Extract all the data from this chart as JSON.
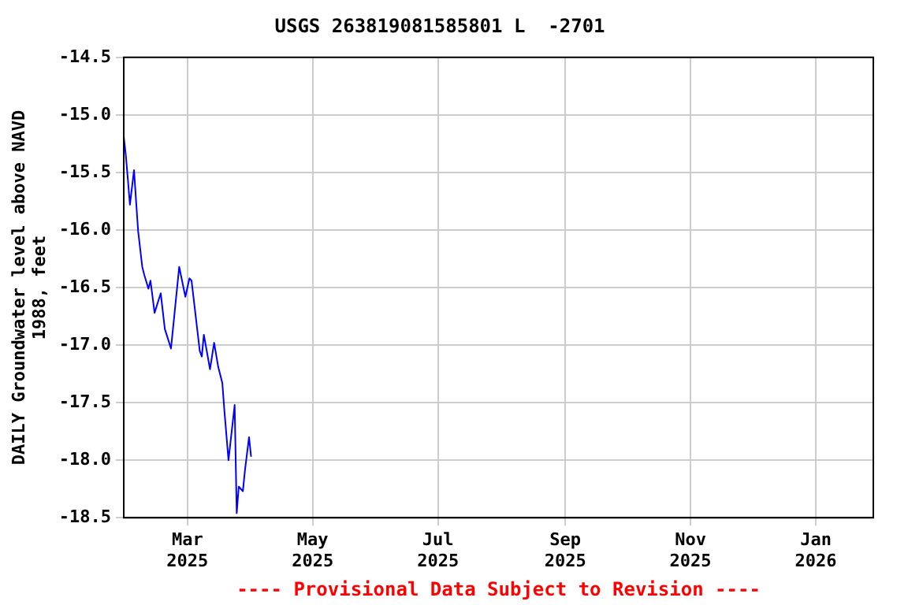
{
  "chart_data": {
    "type": "line",
    "title": "USGS 263819081585801 L  -2701",
    "ylabel": "DAILY Groundwater level above NAVD 1988, feet",
    "annotations": [
      "---- Provisional Data Subject to Revision ----"
    ],
    "x": [
      "2025-01-29",
      "2025-01-30",
      "2025-01-31",
      "2025-02-01",
      "2025-02-03",
      "2025-02-04",
      "2025-02-05",
      "2025-02-07",
      "2025-02-08",
      "2025-02-10",
      "2025-02-11",
      "2025-02-13",
      "2025-02-16",
      "2025-02-18",
      "2025-02-21",
      "2025-02-25",
      "2025-02-28",
      "2025-03-02",
      "2025-03-03",
      "2025-03-07",
      "2025-03-08",
      "2025-03-09",
      "2025-03-12",
      "2025-03-14",
      "2025-03-16",
      "2025-03-18",
      "2025-03-19",
      "2025-03-21",
      "2025-03-24",
      "2025-03-25",
      "2025-03-26",
      "2025-03-28",
      "2025-03-29",
      "2025-03-31",
      "2025-04-01"
    ],
    "series": [
      {
        "color": "#0000ff",
        "values": [
          -15.19,
          -15.35,
          -15.56,
          -15.78,
          -15.48,
          -15.75,
          -16.01,
          -16.32,
          -16.39,
          -16.51,
          -16.44,
          -16.72,
          -16.55,
          -16.86,
          -17.03,
          -16.32,
          -16.58,
          -16.42,
          -16.44,
          -17.05,
          -17.1,
          -16.91,
          -17.21,
          -16.98,
          -17.19,
          -17.33,
          -17.57,
          -18.0,
          -17.52,
          -18.46,
          -18.23,
          -18.27,
          -18.09,
          -17.8,
          -17.97
        ]
      }
    ],
    "xlim": [
      "2025-01-29",
      "2026-01-29"
    ],
    "xticks": [
      {
        "value": "2025-03-01",
        "label": "Mar 2025"
      },
      {
        "value": "2025-05-01",
        "label": "May 2025"
      },
      {
        "value": "2025-07-01",
        "label": "Jul 2025"
      },
      {
        "value": "2025-09-01",
        "label": "Sep 2025"
      },
      {
        "value": "2025-11-01",
        "label": "Nov 2025"
      },
      {
        "value": "2026-01-01",
        "label": "Jan 2026"
      }
    ],
    "ylim": [
      -18.5,
      -14.5
    ],
    "yticks": [
      {
        "value": -18.5,
        "label": "-18.5"
      },
      {
        "value": -18,
        "label": "-18.0"
      },
      {
        "value": -17.5,
        "label": "-17.5"
      },
      {
        "value": -17,
        "label": "-17.0"
      },
      {
        "value": -16.5,
        "label": "-16.5"
      },
      {
        "value": -16,
        "label": "-16.0"
      },
      {
        "value": -15.5,
        "label": "-15.5"
      },
      {
        "value": -15,
        "label": "-15.0"
      },
      {
        "value": -14.5,
        "label": "-14.5"
      }
    ],
    "grid": true,
    "legend": false,
    "marker": "none",
    "line_style": "solid"
  }
}
